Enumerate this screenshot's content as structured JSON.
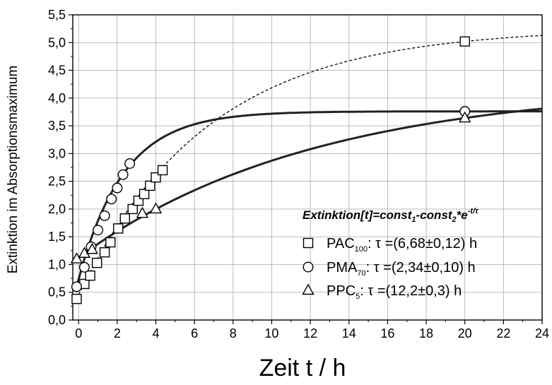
{
  "chart_data": {
    "type": "scatter",
    "xlabel": "Zeit t / h",
    "ylabel": "Extinktion im Absorptionsmaximum",
    "xlim": [
      -0.3,
      24
    ],
    "ylim": [
      0,
      5.5
    ],
    "x_ticks": [
      "0",
      "2",
      "4",
      "6",
      "8",
      "10",
      "12",
      "14",
      "16",
      "18",
      "20",
      "22",
      "24"
    ],
    "y_ticks": [
      "0,0",
      "0,5",
      "1,0",
      "1,5",
      "2,0",
      "2,5",
      "3,0",
      "3,5",
      "4,0",
      "4,5",
      "5,0",
      "5,5"
    ],
    "grid": true,
    "legend_title": {
      "prefix": "Extinktion[t]=const",
      "sub1": "1",
      "mid": "-const",
      "sub2": "2",
      "mid2": "*e",
      "sup": "-t/τ"
    },
    "legend_position": "lower-right",
    "series": [
      {
        "name": "PAC",
        "name_sub": "100",
        "fit_label": ":  τ =(6,68±0,12) h",
        "marker": "square",
        "x": [
          -0.1,
          0.3,
          0.6,
          0.95,
          1.35,
          1.65,
          2.05,
          2.4,
          2.8,
          3.1,
          3.4,
          3.7,
          4.0,
          4.35,
          20.0
        ],
        "y": [
          0.38,
          0.65,
          0.8,
          1.03,
          1.22,
          1.4,
          1.65,
          1.83,
          2.0,
          2.15,
          2.27,
          2.42,
          2.57,
          2.7,
          5.02
        ],
        "fit": {
          "type": "dashed",
          "tau": 6.68
        }
      },
      {
        "name": "PMA",
        "name_sub": "70",
        "fit_label": ":  τ =(2,34±0,10) h",
        "marker": "circle",
        "x": [
          -0.1,
          0.3,
          0.65,
          1.0,
          1.35,
          1.7,
          2.0,
          2.3,
          2.65,
          20.0
        ],
        "y": [
          0.6,
          0.95,
          1.32,
          1.62,
          1.88,
          2.18,
          2.38,
          2.62,
          2.82,
          3.76
        ],
        "fit": {
          "type": "solid",
          "tau": 2.34
        }
      },
      {
        "name": "PPC",
        "name_sub": "5",
        "fit_label": ":  τ =(12,2±0,3)  h",
        "marker": "triangle",
        "x": [
          -0.1,
          0.3,
          0.7,
          3.3,
          4.0,
          20.0
        ],
        "y": [
          1.1,
          1.2,
          1.27,
          1.92,
          2.0,
          3.64
        ],
        "fit": {
          "type": "solid",
          "tau": 12.2
        }
      }
    ]
  }
}
